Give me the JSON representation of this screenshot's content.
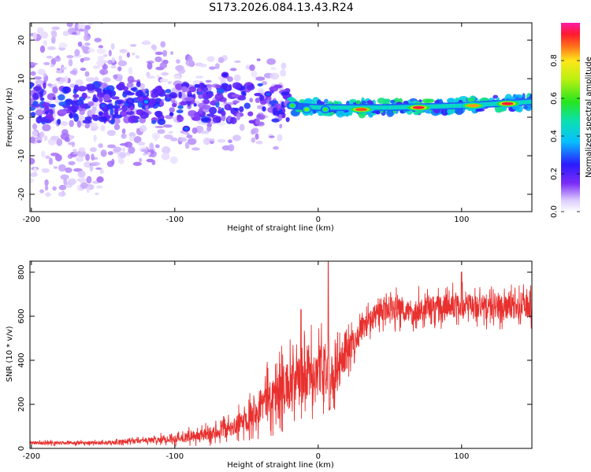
{
  "title": "S173.2026.084.13.43.R24",
  "chart_data": [
    {
      "type": "heatmap",
      "xlabel": "Height of straight line (km)",
      "ylabel": "Frequency (Hz)",
      "xlim": [
        -201,
        149
      ],
      "ylim": [
        -24.5,
        24.5
      ],
      "xticks": [
        -200,
        -100,
        0,
        100
      ],
      "yticks": [
        -20,
        -10,
        0,
        10,
        20
      ],
      "colorbar": {
        "label": "Normalized spectral amplitude",
        "range": [
          0,
          1
        ],
        "ticks": [
          "0.0",
          "0.2",
          "0.4",
          "0.6",
          "0.8"
        ]
      },
      "ridge": {
        "description_x": [
          -201,
          -150,
          -100,
          -50,
          -20,
          0,
          50,
          100,
          149
        ],
        "description_y": [
          3.5,
          3.8,
          3.5,
          3.8,
          3.0,
          2.5,
          2.5,
          3.0,
          4.0
        ]
      },
      "peak_blobs": [
        {
          "x": -150,
          "y": 3,
          "amp": 0.3
        },
        {
          "x": -120,
          "y": 4,
          "amp": 0.35
        },
        {
          "x": -92,
          "y": -3,
          "amp": 0.3
        },
        {
          "x": -65,
          "y": 11,
          "amp": 0.25
        },
        {
          "x": -35,
          "y": 6,
          "amp": 0.3
        },
        {
          "x": -18,
          "y": 3,
          "amp": 0.6
        },
        {
          "x": -8,
          "y": 2,
          "amp": 0.65
        },
        {
          "x": 5,
          "y": 2,
          "amp": 0.6
        },
        {
          "x": 30,
          "y": 2,
          "amp": 0.9
        },
        {
          "x": 70,
          "y": 2.5,
          "amp": 0.95
        },
        {
          "x": 108,
          "y": 3,
          "amp": 0.85
        },
        {
          "x": 132,
          "y": 3.5,
          "amp": 0.95
        }
      ]
    },
    {
      "type": "line",
      "xlabel": "Height of straight line (km)",
      "ylabel": "SNR (10 * v/v)",
      "xlim": [
        -201,
        149
      ],
      "ylim": [
        0,
        850
      ],
      "xticks": [
        -200,
        -100,
        0,
        100
      ],
      "yticks": [
        0,
        200,
        400,
        600,
        800
      ],
      "series": [
        {
          "name": "SNR",
          "color": "#e8302e",
          "envelope_x": [
            -201,
            -150,
            -120,
            -100,
            -80,
            -60,
            -50,
            -40,
            -30,
            -20,
            -10,
            0,
            10,
            20,
            30,
            40,
            50,
            60,
            80,
            100,
            120,
            149
          ],
          "envelope_mean": [
            25,
            25,
            35,
            45,
            60,
            90,
            140,
            200,
            250,
            290,
            310,
            360,
            330,
            430,
            540,
            600,
            640,
            620,
            640,
            650,
            640,
            640
          ],
          "envelope_noise": [
            12,
            12,
            20,
            30,
            45,
            60,
            90,
            130,
            160,
            180,
            190,
            200,
            150,
            120,
            90,
            90,
            90,
            90,
            90,
            90,
            90,
            90
          ],
          "spikes": [
            {
              "x": 7,
              "y": 850
            },
            {
              "x": -12,
              "y": 630
            },
            {
              "x": 100,
              "y": 800
            }
          ]
        }
      ]
    }
  ]
}
